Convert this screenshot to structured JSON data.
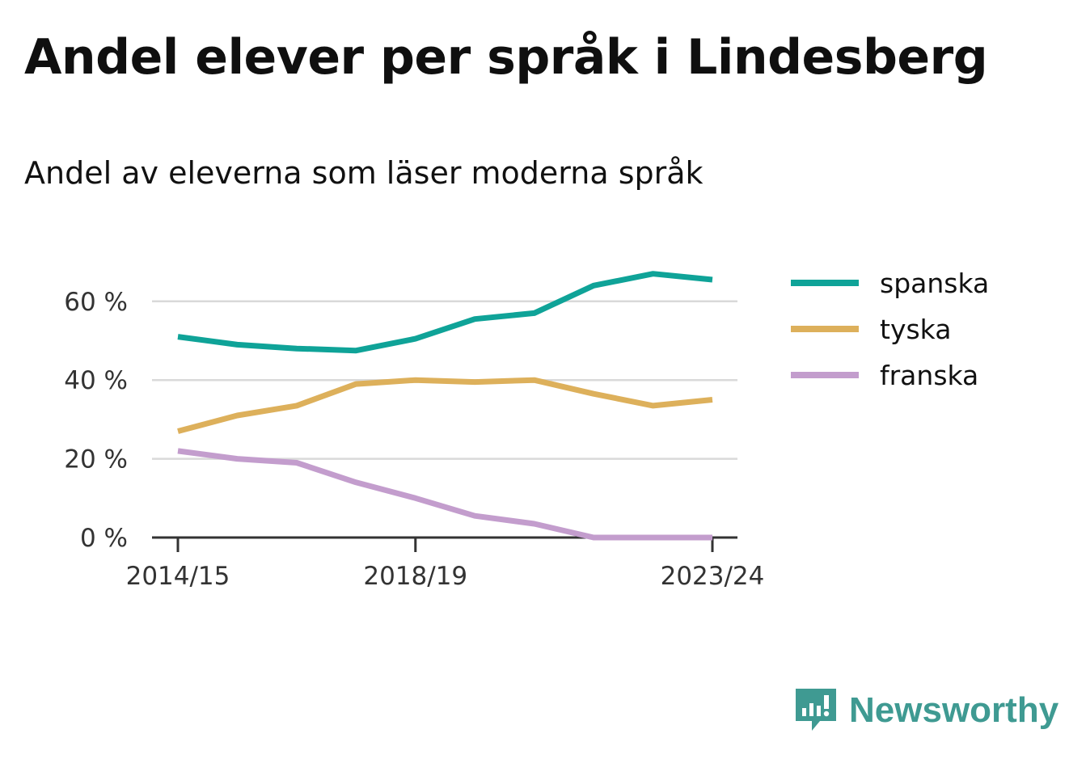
{
  "title": "Andel elever per språk i Lindesberg",
  "subtitle": "Andel av eleverna som läser moderna språk",
  "brand": {
    "name": "Newsworthy",
    "icon": "newsworthy-logo-icon",
    "color": "#3f9a92"
  },
  "chart_data": {
    "type": "line",
    "x": [
      "2014/15",
      "2015/16",
      "2016/17",
      "2017/18",
      "2018/19",
      "2019/20",
      "2020/21",
      "2021/22",
      "2022/23",
      "2023/24"
    ],
    "x_tick_labels": [
      "2014/15",
      "2018/19",
      "2023/24"
    ],
    "y_ticks": [
      0,
      20,
      40,
      60
    ],
    "y_tick_labels": [
      "0 %",
      "20 %",
      "40 %",
      "60 %"
    ],
    "ylim": [
      0,
      70
    ],
    "ylabel": "",
    "xlabel": "",
    "grid": true,
    "legend_position": "right",
    "series": [
      {
        "name": "spanska",
        "color": "#0fa398",
        "values": [
          51,
          49,
          48,
          47.5,
          50.5,
          55.5,
          57,
          64,
          67,
          65.5
        ]
      },
      {
        "name": "tyska",
        "color": "#ddb05b",
        "values": [
          27,
          31,
          33.5,
          39,
          40,
          39.5,
          40,
          36.5,
          33.5,
          35
        ]
      },
      {
        "name": "franska",
        "color": "#c39dcd",
        "values": [
          22,
          20,
          19,
          14,
          10,
          5.5,
          3.5,
          0,
          0,
          0
        ]
      }
    ]
  }
}
